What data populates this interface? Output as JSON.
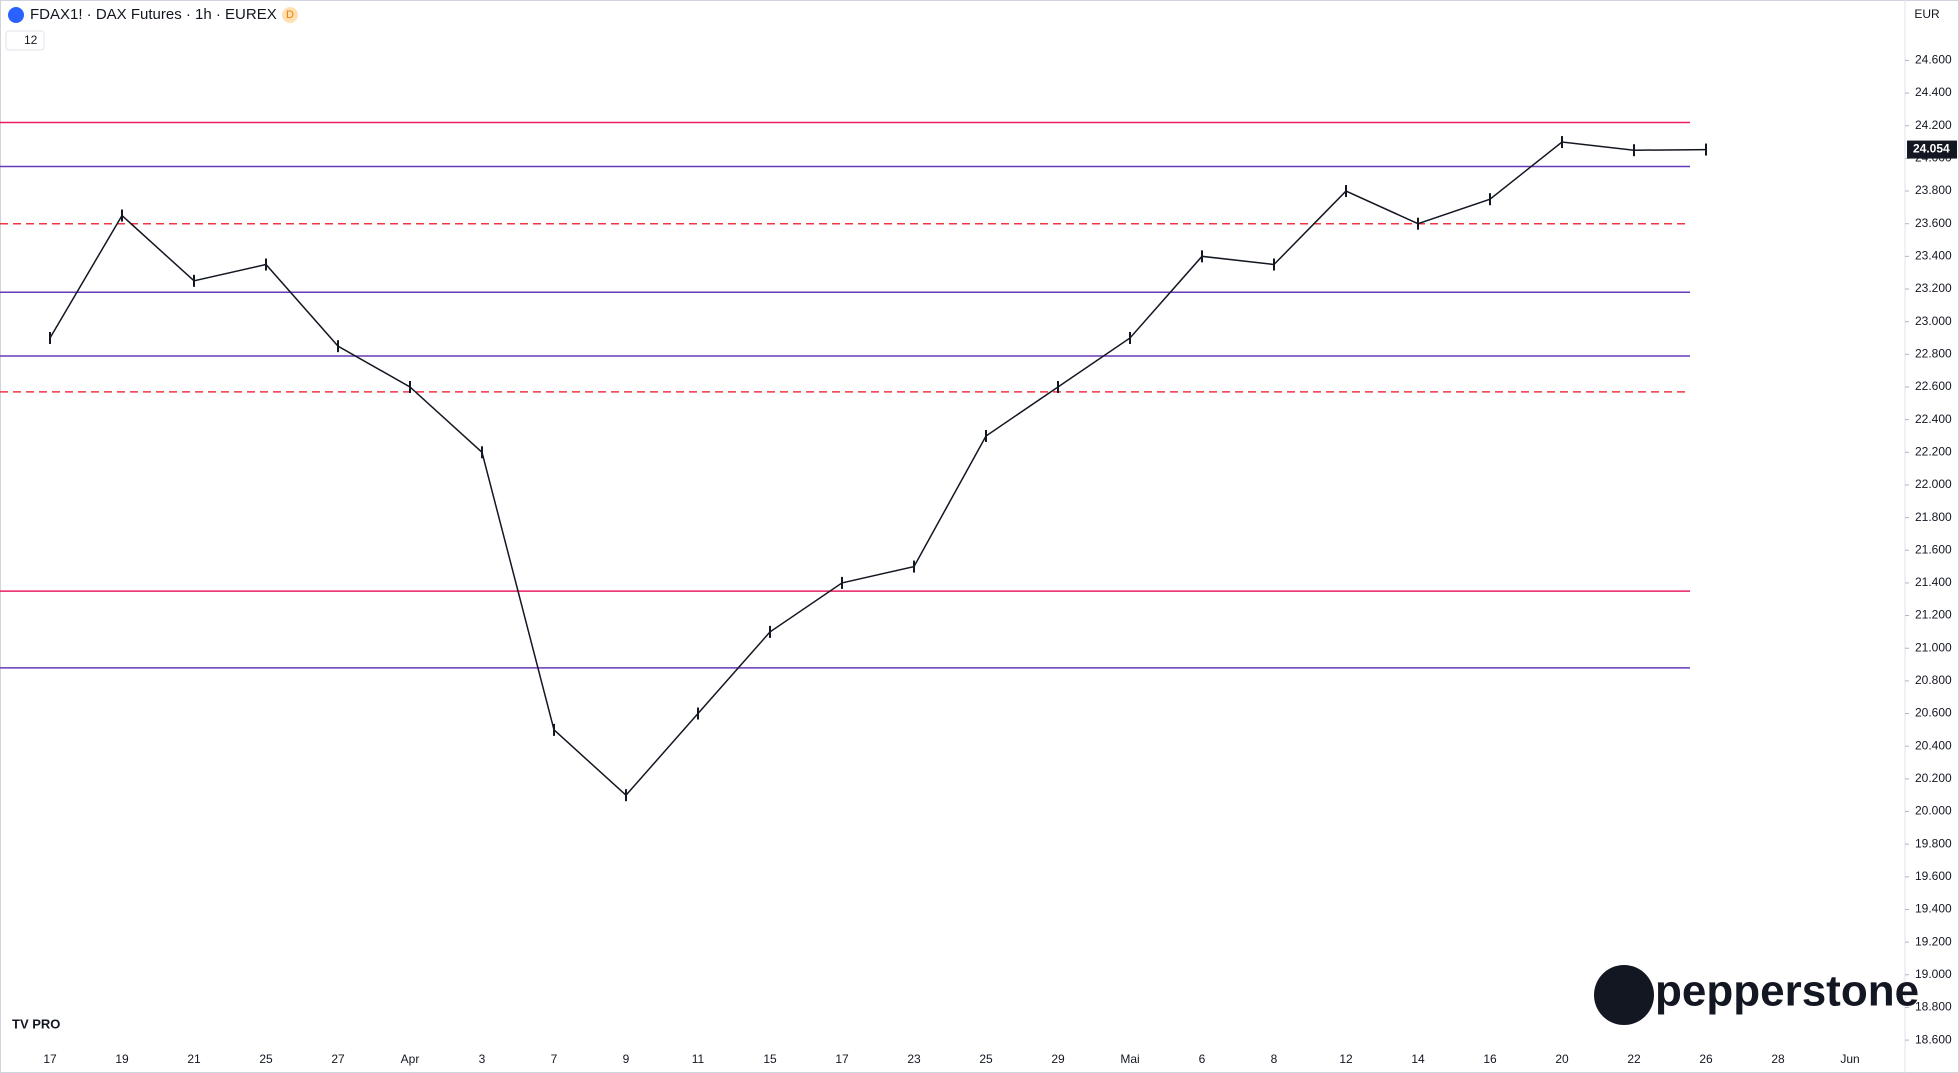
{
  "chart_data": {
    "type": "line",
    "title": "FDAX1! · DAX Futures · 1h · EUREX",
    "badge": "D",
    "interval_count": "12",
    "currency": "EUR",
    "brand": "pepperstone",
    "platform_badge": "TV PRO",
    "categories": [
      "17",
      "19",
      "21",
      "25",
      "27",
      "Apr",
      "3",
      "7",
      "9",
      "11",
      "15",
      "17",
      "23",
      "25",
      "29",
      "Mai",
      "6",
      "8",
      "12",
      "14",
      "16",
      "20",
      "22",
      "26",
      "28",
      "Jun"
    ],
    "values": [
      22900,
      23650,
      23250,
      23350,
      22850,
      22600,
      22200,
      20500,
      20100,
      20600,
      21100,
      21400,
      21500,
      22300,
      22600,
      22900,
      23400,
      23350,
      23800,
      23600,
      23750,
      24100,
      24050,
      24054,
      null,
      null
    ],
    "color": "#131722",
    "last_price": {
      "value": 24054,
      "label": "24.054"
    },
    "levels": [
      {
        "value": 24220,
        "color": "#e91e63",
        "dashed": false
      },
      {
        "value": 23950,
        "color": "#673ab7",
        "dashed": false
      },
      {
        "value": 23600,
        "color": "#f23645",
        "dashed": true
      },
      {
        "value": 23180,
        "color": "#673ab7",
        "dashed": false
      },
      {
        "value": 22790,
        "color": "#673ab7",
        "dashed": false
      },
      {
        "value": 22570,
        "color": "#f23645",
        "dashed": true
      },
      {
        "value": 21350,
        "color": "#e91e63",
        "dashed": false
      },
      {
        "value": 20880,
        "color": "#673ab7",
        "dashed": false
      }
    ],
    "ylim": [
      18570,
      24970
    ],
    "yticks": [
      {
        "value": 18600,
        "label": "18.600"
      },
      {
        "value": 18800,
        "label": "18.800"
      },
      {
        "value": 19000,
        "label": "19.000"
      },
      {
        "value": 19200,
        "label": "19.200"
      },
      {
        "value": 19400,
        "label": "19.400"
      },
      {
        "value": 19600,
        "label": "19.600"
      },
      {
        "value": 19800,
        "label": "19.800"
      },
      {
        "value": 20000,
        "label": "20.000"
      },
      {
        "value": 20200,
        "label": "20.200"
      },
      {
        "value": 20400,
        "label": "20.400"
      },
      {
        "value": 20600,
        "label": "20.600"
      },
      {
        "value": 20800,
        "label": "20.800"
      },
      {
        "value": 21000,
        "label": "21.000"
      },
      {
        "value": 21200,
        "label": "21.200"
      },
      {
        "value": 21400,
        "label": "21.400"
      },
      {
        "value": 21600,
        "label": "21.600"
      },
      {
        "value": 21800,
        "label": "21.800"
      },
      {
        "value": 22000,
        "label": "22.000"
      },
      {
        "value": 22200,
        "label": "22.200"
      },
      {
        "value": 22400,
        "label": "22.400"
      },
      {
        "value": 22600,
        "label": "22.600"
      },
      {
        "value": 22800,
        "label": "22.800"
      },
      {
        "value": 23000,
        "label": "23.000"
      },
      {
        "value": 23200,
        "label": "23.200"
      },
      {
        "value": 23400,
        "label": "23.400"
      },
      {
        "value": 23600,
        "label": "23.600"
      },
      {
        "value": 23800,
        "label": "23.800"
      },
      {
        "value": 24000,
        "label": "24.000"
      },
      {
        "value": 24200,
        "label": "24.200"
      },
      {
        "value": 24400,
        "label": "24.400"
      },
      {
        "value": 24600,
        "label": "24.600"
      }
    ],
    "grid": false
  }
}
